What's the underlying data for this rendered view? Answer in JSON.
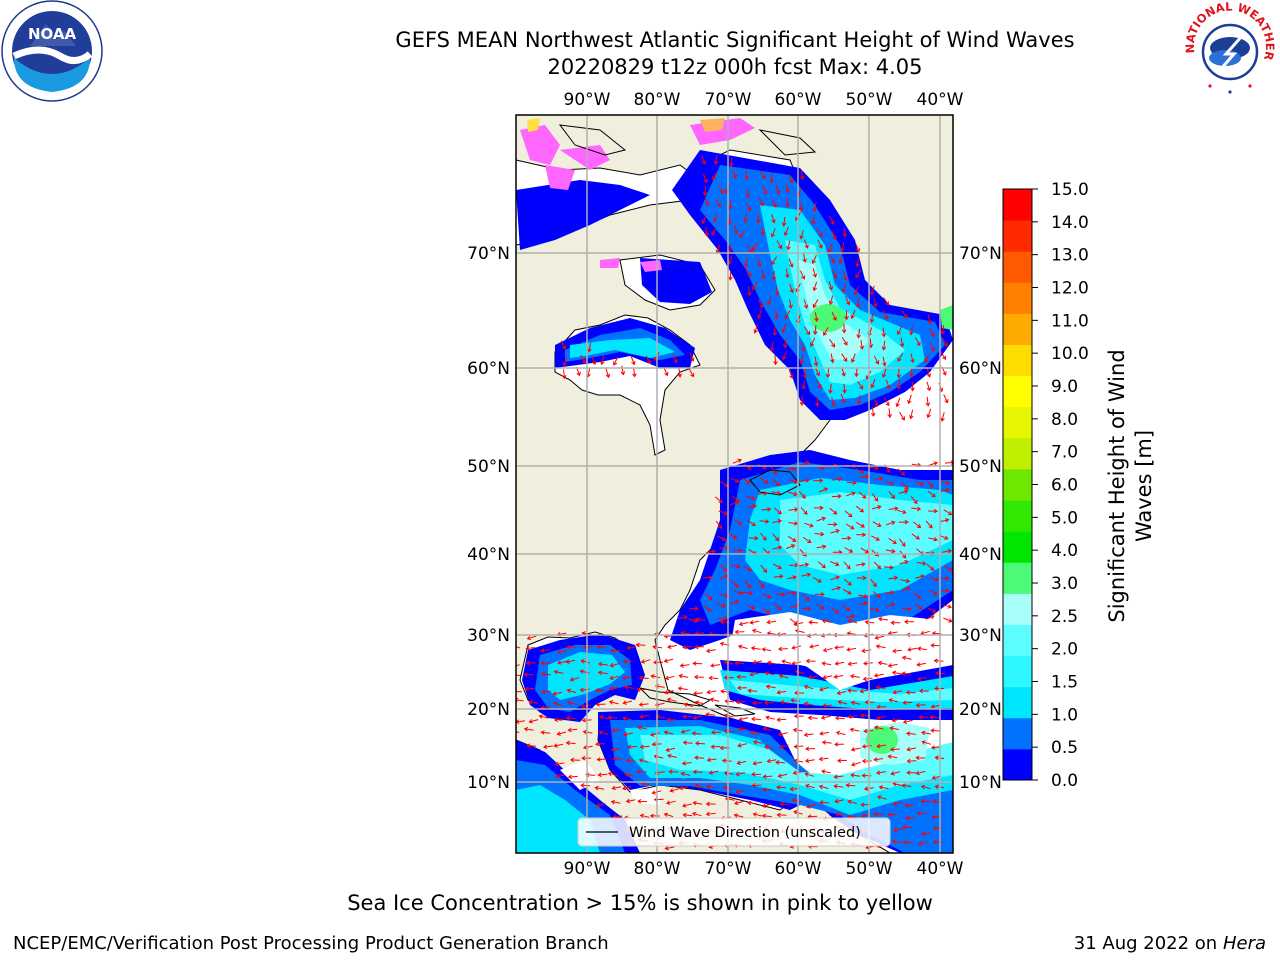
{
  "header": {
    "title_line1": "GEFS MEAN Northwest Atlantic Significant Height of Wind Waves",
    "title_line2": "20220829 t12z 000h fcst   Max: 4.05"
  },
  "logos": {
    "left": {
      "icon": "noaa-logo",
      "text": "NOAA"
    },
    "right": {
      "icon": "nws-logo",
      "text": "NATIONAL WEATHER SERVICE"
    }
  },
  "map": {
    "lon_labels": [
      "90°W",
      "80°W",
      "70°W",
      "60°W",
      "50°W",
      "40°W"
    ],
    "lat_labels": [
      "70°N",
      "60°N",
      "50°N",
      "40°N",
      "30°N",
      "20°N",
      "10°N"
    ],
    "legend": {
      "label": "Wind Wave Direction (unscaled)"
    },
    "colors": {
      "land": "#f0eedd",
      "arrow": "#ff0000",
      "grid": "#b0b0b0",
      "ice": [
        "#ff66ff",
        "#ffb060",
        "#ffe040"
      ]
    },
    "regions": [
      {
        "name": "labrador-sea",
        "value": 1.8
      },
      {
        "name": "labrador-sea-max",
        "value": 3.5
      },
      {
        "name": "hudson-bay",
        "value": 1.3
      },
      {
        "name": "caribbean",
        "value": 1.7
      },
      {
        "name": "gulf-of-mexico",
        "value": 1.5
      },
      {
        "name": "tropical-atlantic-max",
        "value": 3.5
      }
    ]
  },
  "colorbar": {
    "label": "Significant Height of Wind Waves [m]",
    "label_line1": "Significant Height of Wind",
    "label_line2": "Waves [m]",
    "ticks": [
      "0.0",
      "0.5",
      "1.0",
      "1.5",
      "2.0",
      "2.5",
      "3.0",
      "4.0",
      "5.0",
      "6.0",
      "7.0",
      "8.0",
      "9.0",
      "10.0",
      "11.0",
      "12.0",
      "13.0",
      "14.0",
      "15.0"
    ],
    "colors": [
      "#0000ff",
      "#0072ff",
      "#00e6ff",
      "#2ef8ff",
      "#5cfcff",
      "#a8fffa",
      "#4cfa78",
      "#00e600",
      "#30e800",
      "#6ee800",
      "#c0f000",
      "#e6f500",
      "#ffff00",
      "#ffdc00",
      "#ffaa00",
      "#ff8000",
      "#ff5a00",
      "#ff2a00",
      "#ff0000"
    ]
  },
  "footer": {
    "note": "Sea Ice Concentration > 15% is shown in pink to yellow",
    "left": "NCEP/EMC/Verification Post Processing Product Generation Branch",
    "right_date": "31 Aug 2022 on",
    "right_host": "Hera"
  }
}
